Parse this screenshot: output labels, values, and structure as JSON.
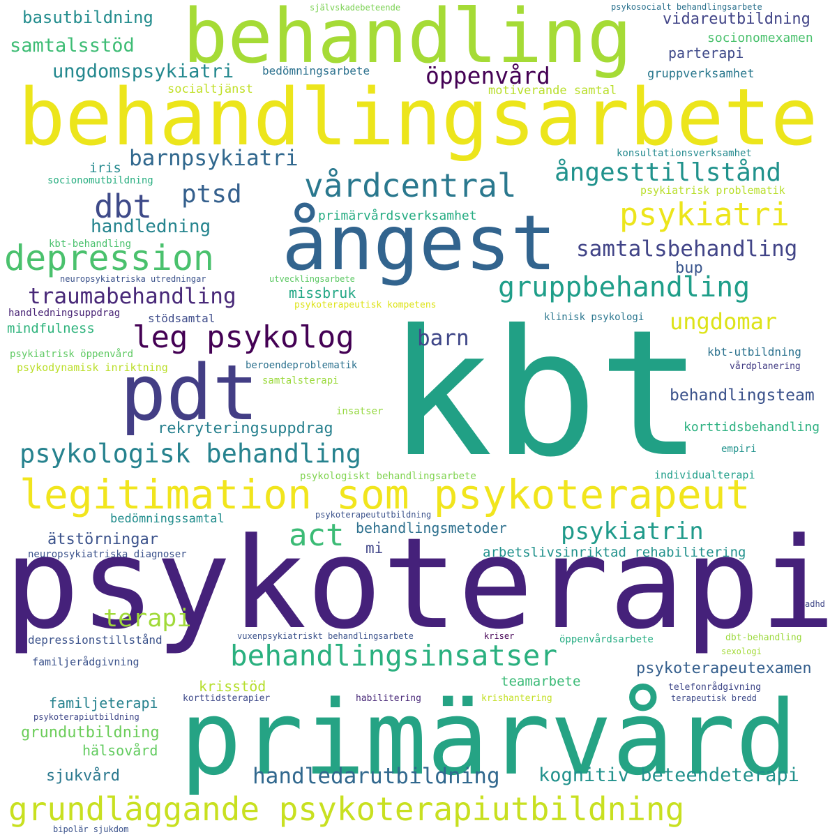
{
  "words": [
    {
      "text": "kbt",
      "color": "#21a085"
    },
    {
      "text": "psykoterapi",
      "color": "#45217a"
    },
    {
      "text": "primärvård",
      "color": "#25a384"
    },
    {
      "text": "behandlingsarbete",
      "color": "#ece51b"
    },
    {
      "text": "behandling",
      "color": "#a5db36"
    },
    {
      "text": "ångest",
      "color": "#32648e"
    },
    {
      "text": "pdt",
      "color": "#433e85"
    },
    {
      "text": "legitimation som psykoterapeut",
      "color": "#f1e51d"
    },
    {
      "text": "grundläggande psykoterapiutbildning",
      "color": "#c8e020"
    },
    {
      "text": "depression",
      "color": "#4ac16d"
    },
    {
      "text": "vårdcentral",
      "color": "#2a788e"
    },
    {
      "text": "leg psykolog",
      "color": "#440154"
    },
    {
      "text": "behandlingsinsatser",
      "color": "#2ab07f"
    },
    {
      "text": "gruppbehandling",
      "color": "#1f9e89"
    },
    {
      "text": "psykologisk behandling",
      "color": "#26828e"
    },
    {
      "text": "psykiatri",
      "color": "#ece51b"
    },
    {
      "text": "dbt",
      "color": "#3e4a89"
    },
    {
      "text": "act",
      "color": "#3bbb75"
    },
    {
      "text": "ångesttillstånd",
      "color": "#20928c"
    },
    {
      "text": "traumabehandling",
      "color": "#482878"
    },
    {
      "text": "samtalsbehandling",
      "color": "#414487"
    },
    {
      "text": "handledarutbildning",
      "color": "#31688e"
    },
    {
      "text": "kognitiv beteendeterapi",
      "color": "#21918c"
    },
    {
      "text": "psykiatrin",
      "color": "#1f9a8a"
    },
    {
      "text": "barnpsykiatri",
      "color": "#31688e"
    },
    {
      "text": "terapi",
      "color": "#a0da39"
    },
    {
      "text": "öppenvård",
      "color": "#440154"
    },
    {
      "text": "ungdomar",
      "color": "#dde318"
    },
    {
      "text": "ptsd",
      "color": "#35608d"
    },
    {
      "text": "ungdomspsykiatri",
      "color": "#23888e"
    },
    {
      "text": "barn",
      "color": "#3f4788"
    },
    {
      "text": "handledning",
      "color": "#25848e"
    },
    {
      "text": "rekryteringsuppdrag",
      "color": "#27808e"
    },
    {
      "text": "behandlingsteam",
      "color": "#3b528b"
    },
    {
      "text": "psykoterapeutexamen",
      "color": "#355f8d"
    },
    {
      "text": "grundutbildning",
      "color": "#6ccd5a"
    },
    {
      "text": "ätstörningar",
      "color": "#3b528b"
    },
    {
      "text": "samtalsstöd",
      "color": "#3dbc74"
    },
    {
      "text": "basutbildning",
      "color": "#228c8d"
    },
    {
      "text": "vidareutbildning",
      "color": "#414487"
    },
    {
      "text": "behandlingsmetoder",
      "color": "#2d708e"
    },
    {
      "text": "arbetslivsinriktad rehabilitering",
      "color": "#21918c"
    },
    {
      "text": "krisstöd",
      "color": "#b5de2b"
    },
    {
      "text": "familjeterapi",
      "color": "#26828e"
    },
    {
      "text": "sjukvård",
      "color": "#2a788e"
    },
    {
      "text": "teamarbete",
      "color": "#3aba76"
    },
    {
      "text": "socionomexamen",
      "color": "#4ac16d"
    },
    {
      "text": "parterapi",
      "color": "#3e4989"
    },
    {
      "text": "korttidsbehandling",
      "color": "#2ab07f"
    },
    {
      "text": "missbruk",
      "color": "#22a785"
    },
    {
      "text": "hälsovård",
      "color": "#62cb5f"
    },
    {
      "text": "mindfulness",
      "color": "#2eb37c"
    },
    {
      "text": "bedömningssamtal",
      "color": "#228d8d"
    },
    {
      "text": "bup",
      "color": "#39558c"
    },
    {
      "text": "mi",
      "color": "#404588"
    },
    {
      "text": "iris",
      "color": "#23898e"
    },
    {
      "text": "gruppverksamhet",
      "color": "#2a788e"
    },
    {
      "text": "motiverande samtal",
      "color": "#b8de29"
    },
    {
      "text": "socialtjänst",
      "color": "#c0df25"
    },
    {
      "text": "bedömningsarbete",
      "color": "#2c718e"
    },
    {
      "text": "primärvårdsverksamhet",
      "color": "#25ac82"
    },
    {
      "text": "stödsamtal",
      "color": "#3e4c8a"
    },
    {
      "text": "konsultationsverksamhet",
      "color": "#23898e"
    },
    {
      "text": "psykiatrisk problematik",
      "color": "#b8de29"
    },
    {
      "text": "socionomutbildning",
      "color": "#28ae80"
    },
    {
      "text": "kbt-behandling",
      "color": "#4ac16d"
    },
    {
      "text": "neuropsykiatriska utredningar",
      "color": "#3b528b"
    },
    {
      "text": "utvecklingsarbete",
      "color": "#5cc863"
    },
    {
      "text": "psykoterapeutisk kompetens",
      "color": "#dde318"
    },
    {
      "text": "handledningsuppdrag",
      "color": "#482475"
    },
    {
      "text": "klinisk psykologi",
      "color": "#2a768e"
    },
    {
      "text": "kbt-utbildning",
      "color": "#2c728e"
    },
    {
      "text": "vårdplanering",
      "color": "#433d84"
    },
    {
      "text": "psykiatrisk öppenvård",
      "color": "#5ec962"
    },
    {
      "text": "psykodynamisk inriktning",
      "color": "#bade28"
    },
    {
      "text": "beroendeproblematik",
      "color": "#2c718e"
    },
    {
      "text": "samtalsterapi",
      "color": "#9bd93c"
    },
    {
      "text": "insatser",
      "color": "#95d840"
    },
    {
      "text": "empiri",
      "color": "#20928c"
    },
    {
      "text": "psykologiskt behandlingsarbete",
      "color": "#7fd34e"
    },
    {
      "text": "individualterapi",
      "color": "#1f9e89"
    },
    {
      "text": "psykoterapeututbildning",
      "color": "#3b528b"
    },
    {
      "text": "neuropsykiatriska diagnoser",
      "color": "#3b528b"
    },
    {
      "text": "adhd",
      "color": "#3f4788"
    },
    {
      "text": "depressionstillstånd",
      "color": "#3b528b"
    },
    {
      "text": "vuxenpsykiatriskt behandlingsarbete",
      "color": "#3b528b"
    },
    {
      "text": "kriser",
      "color": "#440154"
    },
    {
      "text": "öppenvårdsarbete",
      "color": "#25ac82"
    },
    {
      "text": "dbt-behandling",
      "color": "#9bd93c"
    },
    {
      "text": "sexologi",
      "color": "#a2da37"
    },
    {
      "text": "familjerådgivning",
      "color": "#3b528b"
    },
    {
      "text": "telefonrådgivning",
      "color": "#3f4788"
    },
    {
      "text": "korttidsterapier",
      "color": "#3e4989"
    },
    {
      "text": "habilitering",
      "color": "#482878"
    },
    {
      "text": "krishantering",
      "color": "#c2df23"
    },
    {
      "text": "terapeutisk bredd",
      "color": "#3e4a89"
    },
    {
      "text": "psykoterapiutbildning",
      "color": "#3f4788"
    },
    {
      "text": "självskadebeteende",
      "color": "#7ad151"
    },
    {
      "text": "psykosocialt behandlingsarbete",
      "color": "#2c728e"
    },
    {
      "text": "bipolär sjukdom",
      "color": "#3b528b"
    }
  ]
}
